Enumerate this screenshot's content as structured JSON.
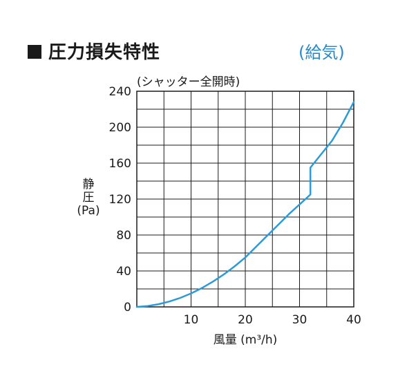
{
  "header": {
    "title": "圧力損失特性",
    "badge": "(給気)"
  },
  "chart_data": {
    "type": "line",
    "title": "圧力損失特性",
    "subtitle": "(シャッター全開時)",
    "xlabel": "風量 (m³/h)",
    "ylabel_lines": [
      "静",
      "圧",
      "(Pa)"
    ],
    "xlim": [
      0,
      40
    ],
    "ylim": [
      0,
      240
    ],
    "xticks": [
      10,
      20,
      30,
      40
    ],
    "yticks": [
      0,
      40,
      80,
      120,
      160,
      200,
      240
    ],
    "grid": true,
    "series": [
      {
        "color": "#2a9ad8",
        "x": [
          0,
          2,
          4,
          6,
          8,
          10,
          12,
          14,
          16,
          18,
          20,
          22,
          24,
          26,
          28,
          30,
          32,
          32,
          34,
          36,
          38,
          40
        ],
        "y": [
          0,
          1,
          3,
          6,
          10,
          15,
          21,
          28,
          36,
          45,
          55,
          67,
          79,
          91,
          103,
          114,
          125,
          155,
          170,
          185,
          205,
          228
        ]
      }
    ]
  }
}
